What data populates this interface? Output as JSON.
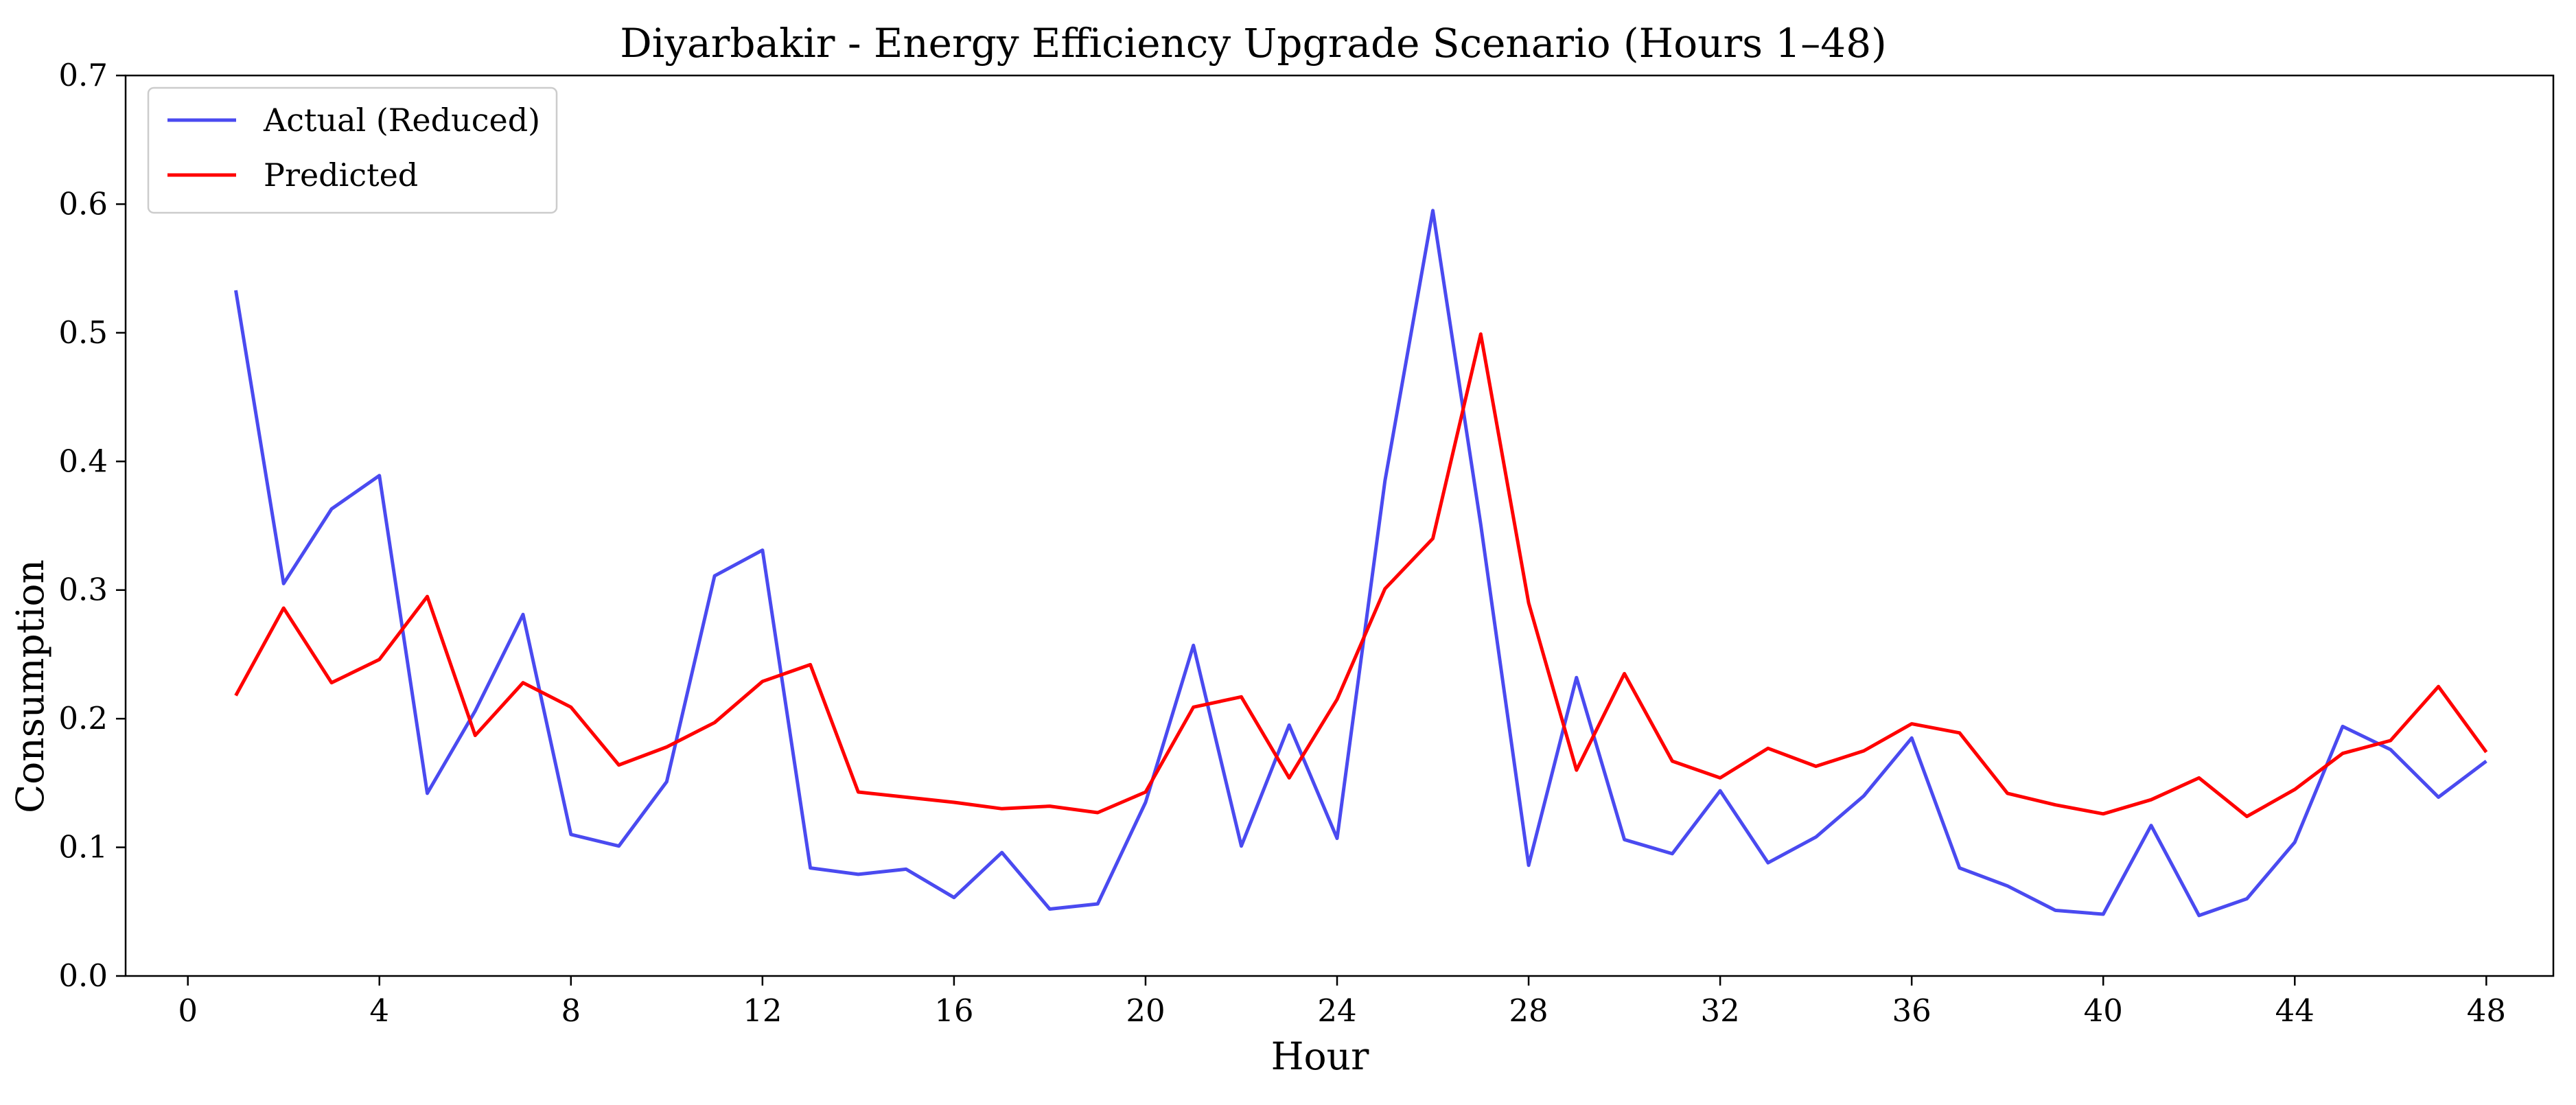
{
  "chart_data": {
    "type": "line",
    "title": "Diyarbakir - Energy Efficiency Upgrade Scenario (Hours 1–48)",
    "xlabel": "Hour",
    "ylabel": "Consumption",
    "xlim": [
      -1.3,
      49.4
    ],
    "ylim": [
      0,
      0.7
    ],
    "xticks": [
      0,
      4,
      8,
      12,
      16,
      20,
      24,
      28,
      32,
      36,
      40,
      44,
      48
    ],
    "yticks": [
      0.0,
      0.1,
      0.2,
      0.3,
      0.4,
      0.5,
      0.6,
      0.7
    ],
    "ytick_labels": [
      "0.0",
      "0.1",
      "0.2",
      "0.3",
      "0.4",
      "0.5",
      "0.6",
      "0.7"
    ],
    "grid": false,
    "legend_position": "top-left",
    "x": [
      1,
      2,
      3,
      4,
      5,
      6,
      7,
      8,
      9,
      10,
      11,
      12,
      13,
      14,
      15,
      16,
      17,
      18,
      19,
      20,
      21,
      22,
      23,
      24,
      25,
      26,
      27,
      28,
      29,
      30,
      31,
      32,
      33,
      34,
      35,
      36,
      37,
      38,
      39,
      40,
      41,
      42,
      43,
      44,
      45,
      46,
      47,
      48
    ],
    "series": [
      {
        "name": "Actual (Reduced)",
        "color": "#4a4af0",
        "values": [
          0.533,
          0.305,
          0.363,
          0.389,
          0.142,
          0.206,
          0.281,
          0.11,
          0.101,
          0.151,
          0.311,
          0.331,
          0.084,
          0.079,
          0.083,
          0.061,
          0.096,
          0.052,
          0.056,
          0.135,
          0.257,
          0.101,
          0.195,
          0.107,
          0.385,
          0.595,
          0.351,
          0.086,
          0.232,
          0.106,
          0.095,
          0.144,
          0.088,
          0.108,
          0.14,
          0.185,
          0.084,
          0.07,
          0.051,
          0.048,
          0.117,
          0.047,
          0.06,
          0.104,
          0.194,
          0.176,
          0.139,
          0.167
        ]
      },
      {
        "name": "Predicted",
        "color": "#ff0000",
        "values": [
          0.218,
          0.286,
          0.228,
          0.246,
          0.295,
          0.187,
          0.228,
          0.209,
          0.164,
          0.178,
          0.197,
          0.229,
          0.242,
          0.143,
          0.139,
          0.135,
          0.13,
          0.132,
          0.127,
          0.143,
          0.209,
          0.217,
          0.154,
          0.215,
          0.301,
          0.34,
          0.499,
          0.29,
          0.16,
          0.235,
          0.167,
          0.154,
          0.177,
          0.163,
          0.175,
          0.196,
          0.189,
          0.142,
          0.133,
          0.126,
          0.137,
          0.154,
          0.124,
          0.145,
          0.173,
          0.183,
          0.225,
          0.174
        ]
      }
    ]
  }
}
